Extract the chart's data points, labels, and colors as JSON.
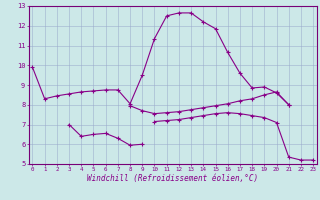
{
  "xlabel": "Windchill (Refroidissement éolien,°C)",
  "x": [
    0,
    1,
    2,
    3,
    4,
    5,
    6,
    7,
    8,
    9,
    10,
    11,
    12,
    13,
    14,
    15,
    16,
    17,
    18,
    19,
    20,
    21,
    22,
    23
  ],
  "line1": [
    9.9,
    8.3,
    8.45,
    8.55,
    8.65,
    8.7,
    8.75,
    8.75,
    8.05,
    9.5,
    11.35,
    12.5,
    12.65,
    12.65,
    12.2,
    11.85,
    10.65,
    9.6,
    8.85,
    8.9,
    8.6,
    8.0,
    null,
    null
  ],
  "line2": [
    null,
    null,
    null,
    7.0,
    6.4,
    6.5,
    6.55,
    6.3,
    5.95,
    6.0,
    null,
    null,
    null,
    null,
    null,
    null,
    null,
    null,
    null,
    null,
    null,
    null,
    null,
    null
  ],
  "line3": [
    null,
    null,
    null,
    null,
    null,
    null,
    null,
    null,
    7.95,
    7.7,
    7.55,
    7.6,
    7.65,
    7.75,
    7.85,
    7.95,
    8.05,
    8.2,
    8.3,
    8.5,
    8.65,
    8.0,
    null,
    null
  ],
  "line4": [
    null,
    null,
    null,
    null,
    null,
    null,
    null,
    null,
    null,
    null,
    7.15,
    7.2,
    7.25,
    7.35,
    7.45,
    7.55,
    7.6,
    7.55,
    7.45,
    7.35,
    7.1,
    5.35,
    5.2,
    5.2
  ],
  "ylim": [
    5,
    13
  ],
  "yticks": [
    5,
    6,
    7,
    8,
    9,
    10,
    11,
    12,
    13
  ],
  "xticks": [
    0,
    1,
    2,
    3,
    4,
    5,
    6,
    7,
    8,
    9,
    10,
    11,
    12,
    13,
    14,
    15,
    16,
    17,
    18,
    19,
    20,
    21,
    22,
    23
  ],
  "line_color": "#880088",
  "bg_color": "#cce8e8",
  "grid_color": "#99aacc",
  "spine_color": "#770077"
}
